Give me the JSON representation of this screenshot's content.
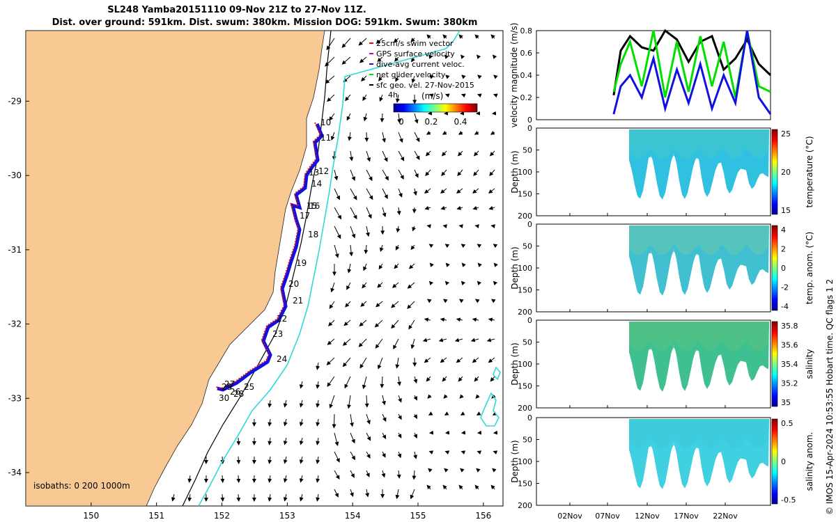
{
  "title_line1": "SL248 Yamba20151110 09-Nov 21Z to 27-Nov 11Z.",
  "title_line2": "Dist. over ground: 591km. Dist. swum: 380km. Mission DOG: 591km. Swum: 380km",
  "watermark": "© IMOS 15-Apr-2024 10:53:55 Hobart time. QC flags 1 2",
  "isobaths_label": "isobaths: 0   200  1000m",
  "colors": {
    "land": "#f9c994",
    "track_red": "#e01010",
    "track_blue": "#1010e0",
    "isobath": "#30d8d8",
    "green": "#00e000"
  },
  "chart_data": [
    {
      "type": "map",
      "x_ticks": [
        150,
        151,
        152,
        153,
        154,
        155,
        156
      ],
      "y_ticks": [
        -29,
        -30,
        -31,
        -32,
        -33,
        -34
      ],
      "xlim": [
        149,
        156.3
      ],
      "ylim": [
        -34.45,
        -28.05
      ],
      "legend": [
        "25cm/s swim vector",
        "GPS surface velocity",
        "dive-avg current veloc.",
        "net glider velocity",
        "sfc geo. vel. 27-Nov-2015"
      ],
      "colorbar": {
        "label": "(m/s)",
        "ticks": [
          "0",
          "0.2",
          "0.4"
        ],
        "range": [
          0,
          0.5
        ]
      },
      "corner_label": "4h",
      "day_labels": [
        {
          "day": "10",
          "lon": 153.05,
          "lat": -29.5
        },
        {
          "day": "11",
          "lon": 153.05,
          "lat": -29.65
        },
        {
          "day": "12",
          "lon": 152.97,
          "lat": -30.1
        },
        {
          "day": "13",
          "lon": 152.97,
          "lat": -30.15
        },
        {
          "day": "14",
          "lon": 152.9,
          "lat": -30.25
        },
        {
          "day": "15",
          "lon": 152.9,
          "lat": -30.57
        },
        {
          "day": "16",
          "lon": 152.9,
          "lat": -30.57
        },
        {
          "day": "17",
          "lon": 152.8,
          "lat": -30.72
        },
        {
          "day": "18",
          "lon": 152.9,
          "lat": -30.95
        },
        {
          "day": "19",
          "lon": 152.78,
          "lat": -31.33
        },
        {
          "day": "20",
          "lon": 152.7,
          "lat": -31.65
        },
        {
          "day": "21",
          "lon": 152.73,
          "lat": -31.85
        },
        {
          "day": "22",
          "lon": 152.6,
          "lat": -32.05
        },
        {
          "day": "23",
          "lon": 152.6,
          "lat": -32.27
        },
        {
          "day": "24",
          "lon": 152.55,
          "lat": -32.6
        },
        {
          "day": "25",
          "lon": 152.2,
          "lat": -32.95
        },
        {
          "day": "26",
          "lon": 152.05,
          "lat": -33.0
        },
        {
          "day": "27",
          "lon": 152.1,
          "lat": -32.95
        },
        {
          "day": "28",
          "lon": 152.05,
          "lat": -33.05
        },
        {
          "day": "29",
          "lon": 151.95,
          "lat": -33.05
        },
        {
          "day": "30",
          "lon": 151.95,
          "lat": -33.1
        }
      ]
    },
    {
      "type": "line",
      "ylabel": "velocity magnitude (m/s)",
      "ylim": [
        0,
        0.8
      ],
      "y_ticks": [
        "0",
        "0.2",
        "0.4",
        "0.6",
        "0.8"
      ],
      "series": [
        {
          "name": "geo velocity",
          "color": "black",
          "x": [
            0.33,
            0.36,
            0.4,
            0.45,
            0.5,
            0.55,
            0.6,
            0.65,
            0.7,
            0.75,
            0.8,
            0.85,
            0.9,
            0.95,
            1.0
          ],
          "values": [
            0.22,
            0.62,
            0.75,
            0.65,
            0.62,
            0.8,
            0.72,
            0.52,
            0.7,
            0.75,
            0.45,
            0.55,
            0.72,
            0.5,
            0.4
          ]
        },
        {
          "name": "net glider velocity",
          "color": "green",
          "x": [
            0.33,
            0.36,
            0.4,
            0.45,
            0.5,
            0.55,
            0.6,
            0.65,
            0.7,
            0.75,
            0.8,
            0.85,
            0.9,
            0.95,
            1.0
          ],
          "values": [
            0.25,
            0.5,
            0.7,
            0.3,
            0.8,
            0.2,
            0.7,
            0.25,
            0.75,
            0.3,
            0.7,
            0.2,
            0.8,
            0.3,
            0.25
          ]
        },
        {
          "name": "dive-avg current",
          "color": "blue",
          "x": [
            0.33,
            0.36,
            0.4,
            0.45,
            0.5,
            0.55,
            0.6,
            0.65,
            0.7,
            0.75,
            0.8,
            0.85,
            0.9,
            0.95,
            1.0
          ],
          "values": [
            0.05,
            0.3,
            0.4,
            0.2,
            0.55,
            0.1,
            0.45,
            0.15,
            0.5,
            0.1,
            0.4,
            0.15,
            0.8,
            0.2,
            0.05
          ]
        }
      ]
    },
    {
      "type": "heatmap",
      "ylabel": "Depth (m)",
      "y_ticks": [
        "0",
        "50",
        "100",
        "150",
        "200"
      ],
      "colorbar_label": "temperature (°C)",
      "colorbar_ticks": [
        "25",
        "20",
        "15"
      ]
    },
    {
      "type": "heatmap",
      "ylabel": "Depth (m)",
      "y_ticks": [
        "0",
        "50",
        "100",
        "150",
        "200"
      ],
      "colorbar_label": "temp. anom. (°C)",
      "colorbar_ticks": [
        "4",
        "2",
        "0",
        "-2",
        "-4"
      ]
    },
    {
      "type": "heatmap",
      "ylabel": "Depth (m)",
      "y_ticks": [
        "0",
        "50",
        "100",
        "150",
        "200"
      ],
      "colorbar_label": "salinity",
      "colorbar_ticks": [
        "35.8",
        "35.6",
        "35.4",
        "35.2",
        "35"
      ]
    },
    {
      "type": "heatmap",
      "ylabel": "Depth (m)",
      "y_ticks": [
        "0",
        "50",
        "100",
        "150",
        "200"
      ],
      "colorbar_label": "salinity anom.",
      "colorbar_ticks": [
        "0.5",
        "0",
        "-0.5"
      ],
      "x_ticks": [
        "02Nov",
        "07Nov",
        "12Nov",
        "17Nov",
        "22Nov"
      ]
    }
  ]
}
